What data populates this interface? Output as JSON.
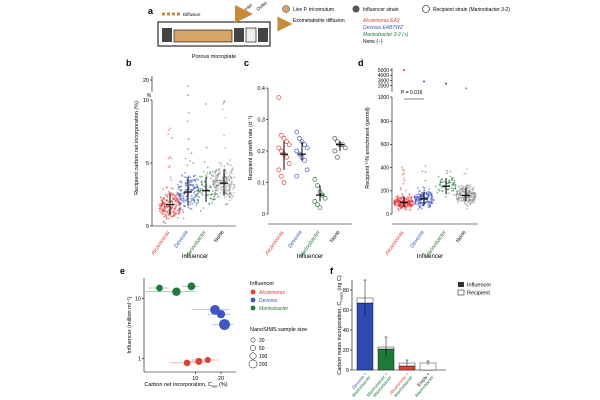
{
  "colors": {
    "alcanivorax": "#e0403a",
    "devosia": "#3f56c0",
    "marinobacter": "#1f7a3a",
    "none": "#8a8a8a",
    "none_dark": "#555555",
    "live_cell": "#d9a467",
    "inner_bar": "#e8cfa8",
    "influencer_bar": "#2e4bb3",
    "recipient_bar": "#ffffff"
  },
  "panel_a": {
    "letter": "a",
    "caption": "Porous microplate",
    "arrow_left_label": "Diffusion",
    "inlet_label": "Inlet",
    "outlet_label": "Outlet",
    "legend": {
      "live": "Live P. tricornutum",
      "exo": "Exometabolite diffusion",
      "influencer_title": "Influencer strain",
      "recipient_title": "Recipient strain (Marinobacter 3-2)",
      "strains": [
        {
          "label": "Alcanivorax EA2",
          "key": "alcanivorax"
        },
        {
          "label": "Devosia EAB7WZ",
          "key": "devosia"
        },
        {
          "label": "Marinobacter 3-2 (+)",
          "key": "marinobacter"
        },
        {
          "label": "None (−)",
          "key": "none"
        }
      ]
    }
  },
  "panel_b": {
    "letter": "b",
    "ylabel": "Recipient carbon net incorporation (%)",
    "xlabel": "Influencer",
    "yticks": [
      "0",
      "5",
      "10",
      "20"
    ],
    "ybreak": "%",
    "categories": [
      "Alcanivorax",
      "Devosia",
      "Marinobacter",
      "None"
    ]
  },
  "panel_c": {
    "letter": "c",
    "ylabel": "Recipient growth rate (d⁻¹)",
    "xlabel": "Influencer",
    "yticks": [
      "0",
      "0.1",
      "0.2",
      "0.3",
      "0.4"
    ],
    "categories": [
      "Alcanivorax",
      "Devosia",
      "Marinobacter",
      "None"
    ]
  },
  "panel_d": {
    "letter": "d",
    "ylabel": "Recipient ¹⁵N enrichment (permil)",
    "xlabel": "Influencer",
    "yticks": [
      "0",
      "200",
      "400",
      "600",
      "800",
      "1000",
      "2000",
      "3000",
      "4000",
      "5000"
    ],
    "pvalue": "P = 0.016",
    "categories": [
      "Alcanivorax",
      "Devosia",
      "Marinobacter",
      "None"
    ]
  },
  "panel_e": {
    "letter": "e",
    "ylabel": "Influencer (million ml⁻¹)",
    "xlabel": "Carbon net incorporation, C",
    "xlabel_sub": "net",
    "xlabel_unit": "(%)",
    "yticks": [
      "1",
      "10"
    ],
    "xticks": [
      "10",
      "20"
    ],
    "legend_title": "Influencer",
    "legend": [
      {
        "label": "Alcanivorax",
        "key": "alcanivorax"
      },
      {
        "label": "Devosia",
        "key": "devosia"
      },
      {
        "label": "Marinobacter",
        "key": "marinobacter"
      }
    ],
    "size_title": "NanoSIMS sample size",
    "sizes": [
      "20",
      "50",
      "100",
      "200"
    ]
  },
  "panel_f": {
    "letter": "f",
    "ylabel": "Carbon mass incorporation, C",
    "ylabel_sub": "mass",
    "ylabel_unit": "(ng C)",
    "yticks": [
      "0",
      "20",
      "40",
      "60",
      "80"
    ],
    "legend": [
      "Influencer",
      "Recipient"
    ],
    "categories": [
      "Devosia + Marinobacter",
      "Marinobacter + Marinobacter",
      "Alcanivorax + Marinobacter",
      "Empty + Marinobacter"
    ]
  },
  "chart_data": [
    {
      "type": "scatter",
      "title": "b",
      "ylabel": "Recipient carbon net incorporation (%)",
      "xlabel": "Influencer",
      "categories": [
        "Alcanivorax",
        "Devosia",
        "Marinobacter",
        "None"
      ],
      "median": [
        1.7,
        2.7,
        2.8,
        3.4
      ],
      "q1": [
        0.9,
        1.6,
        1.9,
        2.4
      ],
      "q3": [
        2.6,
        3.9,
        3.9,
        4.5
      ],
      "spread_min": [
        0,
        0,
        0,
        0
      ],
      "spread_max": [
        8,
        10.5,
        7,
        10
      ]
    },
    {
      "type": "scatter",
      "title": "c",
      "ylabel": "Recipient growth rate (d⁻¹)",
      "xlabel": "Influencer",
      "ylim": [
        0,
        0.4
      ],
      "categories": [
        "Alcanivorax",
        "Devosia",
        "Marinobacter",
        "None"
      ],
      "points": [
        [
          0.37,
          0.25,
          0.24,
          0.23,
          0.22,
          0.21,
          0.2,
          0.19,
          0.18,
          0.16,
          0.14,
          0.12,
          0.1
        ],
        [
          0.26,
          0.24,
          0.23,
          0.22,
          0.21,
          0.2,
          0.19,
          0.18,
          0.17,
          0.14,
          0.12
        ],
        [
          0.11,
          0.09,
          0.07,
          0.06,
          0.05,
          0.04,
          0.03,
          0.02
        ],
        [
          0.24,
          0.23,
          0.22,
          0.22,
          0.21,
          0.2,
          0.18
        ]
      ],
      "median": [
        0.19,
        0.19,
        0.06,
        0.22
      ],
      "q1": [
        0.14,
        0.17,
        0.04,
        0.2
      ],
      "q3": [
        0.23,
        0.23,
        0.09,
        0.23
      ]
    },
    {
      "type": "scatter",
      "title": "d",
      "ylabel": "Recipient ¹⁵N enrichment (permil)",
      "xlabel": "Influencer",
      "categories": [
        "Alcanivorax",
        "Devosia",
        "Marinobacter",
        "None"
      ],
      "median": [
        100,
        130,
        240,
        160
      ],
      "q1": [
        60,
        80,
        170,
        110
      ],
      "q3": [
        150,
        190,
        310,
        230
      ],
      "spread_max": [
        450,
        500,
        420,
        420
      ],
      "annotation": "P = 0.016"
    },
    {
      "type": "scatter",
      "title": "e",
      "xlabel": "Carbon net incorporation, Cnet (%)",
      "ylabel": "Influencer (million ml⁻¹)",
      "points": [
        {
          "series": "Marinobacter",
          "x": 6,
          "y": 13,
          "n": 100,
          "xerr": 4
        },
        {
          "series": "Marinobacter",
          "x": 9,
          "y": 16,
          "n": 80,
          "xerr": 2
        },
        {
          "series": "Marinobacter",
          "x": 3.8,
          "y": 15,
          "n": 50,
          "xerr": 1
        },
        {
          "series": "Devosia",
          "x": 17,
          "y": 6.5,
          "n": 150,
          "xerr": 8
        },
        {
          "series": "Devosia",
          "x": 20,
          "y": 5.5,
          "n": 100,
          "xerr": 6
        },
        {
          "series": "Devosia",
          "x": 22,
          "y": 3.7,
          "n": 200,
          "xerr": 6
        },
        {
          "series": "Alcanivorax",
          "x": 8,
          "y": 0.85,
          "n": 50,
          "xerr": 3
        },
        {
          "series": "Alcanivorax",
          "x": 11,
          "y": 0.9,
          "n": 60,
          "xerr": 3
        },
        {
          "series": "Alcanivorax",
          "x": 14,
          "y": 0.95,
          "n": 40,
          "xerr": 5
        }
      ]
    },
    {
      "type": "bar",
      "title": "f",
      "ylabel": "Carbon mass incorporation, Cmass (ng C)",
      "ylim": [
        0,
        90
      ],
      "categories": [
        "Devosia + Marinobacter",
        "Marinobacter + Marinobacter",
        "Alcanivorax + Marinobacter",
        "Empty + Marinobacter"
      ],
      "series": [
        {
          "name": "Influencer",
          "values": [
            67,
            21,
            4,
            0
          ]
        },
        {
          "name": "Recipient",
          "values": [
            5,
            2,
            3,
            7
          ]
        }
      ],
      "errors": [
        18,
        10,
        3,
        2
      ]
    }
  ]
}
